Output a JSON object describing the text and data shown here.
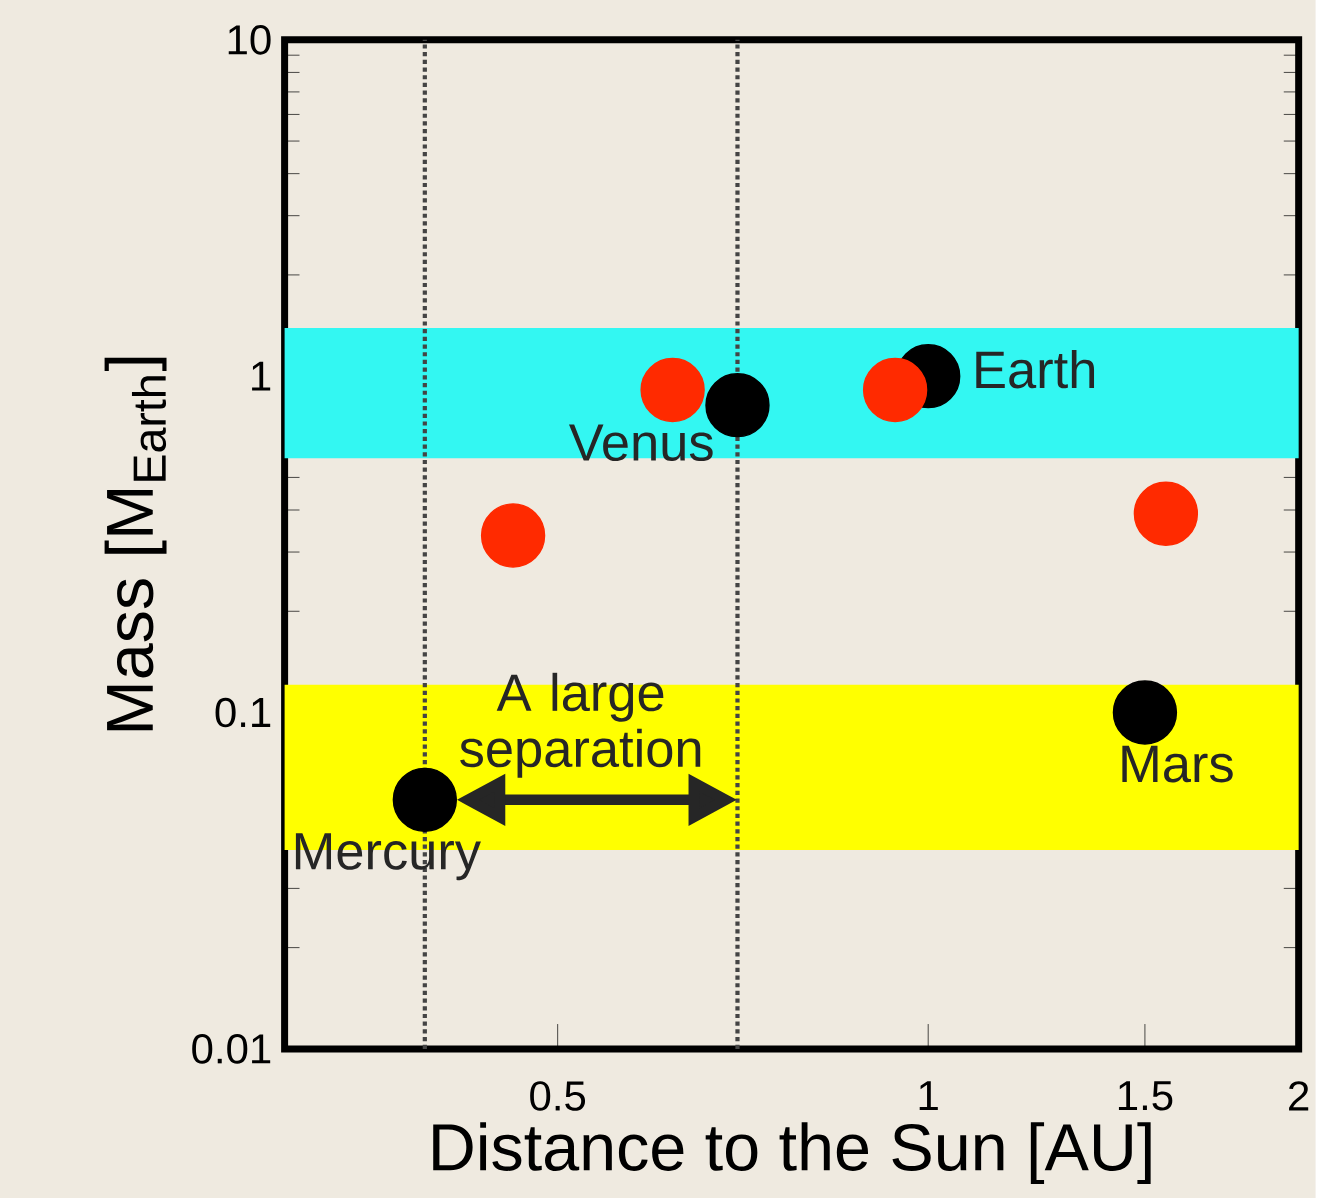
{
  "chart_data": {
    "type": "scatter",
    "xlabel": "Distance to the Sun [AU]",
    "ylabel": "Mass [M$_{Earth}$]",
    "log": "xy",
    "grid": false,
    "marker": "circle",
    "xlim": [
      0.3,
      2
    ],
    "xticks": [
      0.5,
      1,
      1.5,
      2
    ],
    "ylim": [
      0.01,
      10
    ],
    "yticks": [
      0.01,
      0.1,
      1,
      10
    ],
    "series": [
      {
        "color": "#000000",
        "x": [
          0.39,
          0.7,
          1.0,
          1.5
        ],
        "values": [
          0.055,
          0.82,
          1.0,
          0.1
        ]
      },
      {
        "color": "#ff2a00",
        "x": [
          0.46,
          0.62,
          0.94,
          1.56
        ],
        "values": [
          0.336,
          0.91,
          0.91,
          0.39
        ]
      }
    ],
    "bands": [
      {
        "axis": "y",
        "from": 0.57,
        "to": 1.39,
        "label": null,
        "color": "#33f7f2"
      },
      {
        "axis": "y",
        "from": 0.039,
        "to": 0.121,
        "label": null,
        "color": "#ffff00"
      }
    ],
    "ref_lines": [
      {
        "axis": "x",
        "value": 0.39,
        "label": null,
        "color": "#444444",
        "line_style": "dotted"
      },
      {
        "axis": "x",
        "value": 0.7,
        "label": null,
        "color": "#444444",
        "line_style": "dotted"
      }
    ],
    "annotations": [
      {
        "text": "Mercury",
        "x": 0.39,
        "y": 0.055
      },
      {
        "text": "Venus",
        "x": 0.7,
        "y": 0.82
      },
      {
        "text": "Earth",
        "x": 1.0,
        "y": 1.0
      },
      {
        "text": "Mars",
        "x": 1.5,
        "y": 0.1
      },
      "A large separation"
    ]
  }
}
